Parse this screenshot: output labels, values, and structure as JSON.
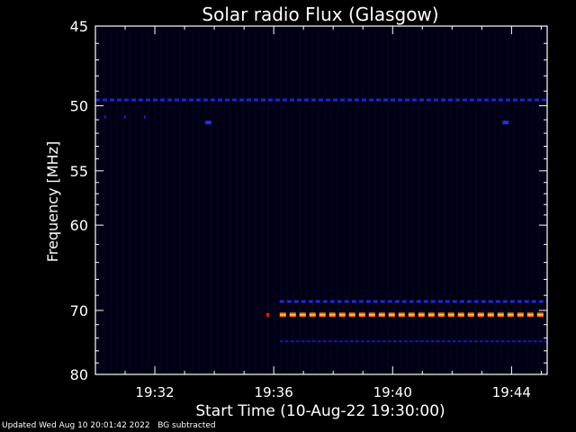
{
  "footer": {
    "updated": "Updated Wed Aug 10 20:01:42 2022",
    "note": "BG subtracted"
  },
  "chart_data": {
    "type": "heatmap",
    "title": "Solar radio Flux (Glasgow)",
    "xlabel": "Start Time (10-Aug-22 19:30:00)",
    "ylabel": "Frequency [MHz]",
    "x_units": "minutes after 19:30:00",
    "xlim": [
      0,
      15.2
    ],
    "ylim": [
      45,
      80
    ],
    "y_scale": "reciprocal (frequency increases downward)",
    "xticks": [
      {
        "value": 2,
        "label": "19:32"
      },
      {
        "value": 6,
        "label": "19:36"
      },
      {
        "value": 10,
        "label": "19:40"
      },
      {
        "value": 14,
        "label": "19:44"
      }
    ],
    "yticks": [
      {
        "value": 45,
        "label": "45"
      },
      {
        "value": 50,
        "label": "50"
      },
      {
        "value": 55,
        "label": "55"
      },
      {
        "value": 60,
        "label": "60"
      },
      {
        "value": 70,
        "label": "70"
      },
      {
        "value": 80,
        "label": "80"
      }
    ],
    "background_color": "#000014",
    "features": [
      {
        "freq_mhz": 49.6,
        "x_start": 0.0,
        "x_end": 15.2,
        "color": "#1428d8",
        "style": "dashed"
      },
      {
        "freq_mhz": 50.8,
        "x_start": 0.3,
        "x_end": 1.9,
        "color": "#1428c8",
        "style": "sparse"
      },
      {
        "freq_mhz": 51.2,
        "x_start": 3.7,
        "x_end": 3.9,
        "color": "#1e32e6",
        "style": "dot"
      },
      {
        "freq_mhz": 51.2,
        "x_start": 13.7,
        "x_end": 13.9,
        "color": "#1e32e6",
        "style": "dot"
      },
      {
        "freq_mhz": 68.8,
        "x_start": 6.2,
        "x_end": 15.2,
        "color": "#1e28e0",
        "style": "dashed"
      },
      {
        "freq_mhz": 70.6,
        "x_start": 6.2,
        "x_end": 15.2,
        "color": "#ff6010",
        "style": "dashed"
      },
      {
        "freq_mhz": 70.6,
        "x_start": 5.75,
        "x_end": 5.85,
        "color": "#ff1010",
        "style": "dot"
      },
      {
        "freq_mhz": 74.5,
        "x_start": 6.2,
        "x_end": 15.2,
        "color": "#1418b4",
        "style": "dashed-fine"
      }
    ]
  }
}
